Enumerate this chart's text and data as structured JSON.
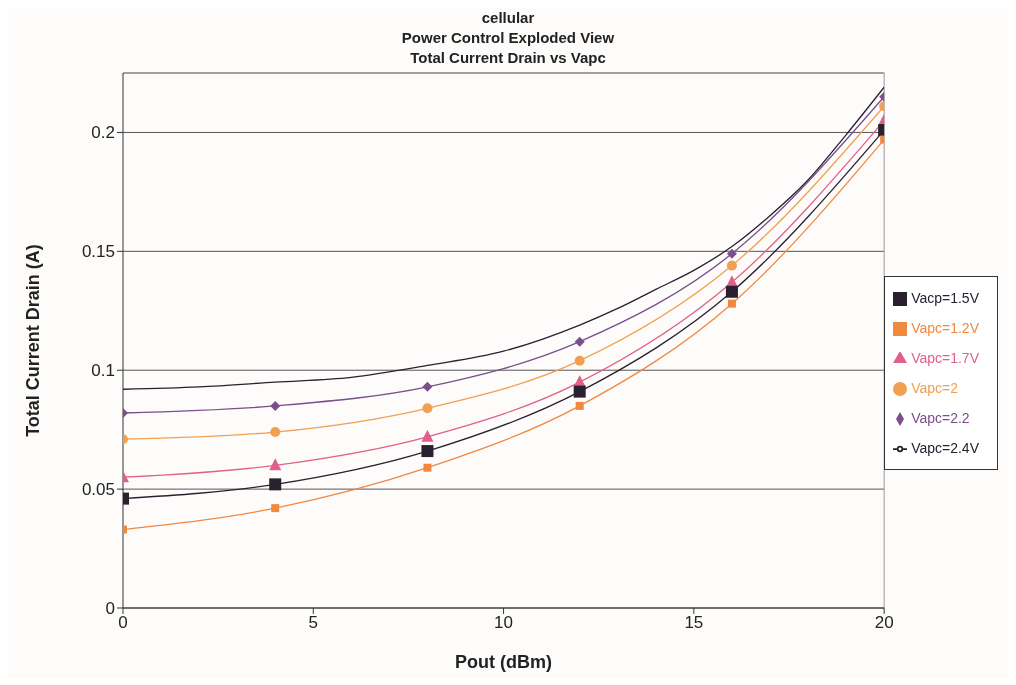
{
  "chart_data": {
    "type": "line",
    "title": "cellular\nPower Control Exploded View\nTotal Current Drain vs Vapc",
    "xlabel": "Pout (dBm)",
    "ylabel": "Total Current Drain (A)",
    "xlim": [
      0,
      20
    ],
    "xticks": [
      0,
      5,
      10,
      15,
      20
    ],
    "ylim": [
      0,
      0.225
    ],
    "yticks": [
      0,
      0.05,
      0.1,
      0.15,
      0.2
    ],
    "grid": "y",
    "legend": "right",
    "line_style": "solid",
    "series": [
      {
        "name": "Vapc=2.4V",
        "color": "#2a2030",
        "marker": "none",
        "x": [
          0,
          2,
          4,
          6,
          8,
          10,
          12,
          13,
          14,
          15,
          16,
          17,
          18,
          19,
          20
        ],
        "values": [
          0.092,
          0.093,
          0.095,
          0.097,
          0.102,
          0.108,
          0.119,
          0.126,
          0.134,
          0.142,
          0.152,
          0.165,
          0.18,
          0.199,
          0.219
        ]
      },
      {
        "name": "Vapc=2.2",
        "color": "#7a4f8a",
        "marker": "diamond",
        "x": [
          0,
          4,
          8,
          12,
          16,
          20
        ],
        "values": [
          0.082,
          0.085,
          0.093,
          0.112,
          0.149,
          0.215
        ]
      },
      {
        "name": "Vapc=2",
        "color": "#f0a050",
        "marker": "circle",
        "x": [
          0,
          4,
          8,
          12,
          16,
          20
        ],
        "values": [
          0.071,
          0.074,
          0.084,
          0.104,
          0.144,
          0.211
        ]
      },
      {
        "name": "Vapc=1.7V",
        "color": "#e0608a",
        "marker": "triangle",
        "x": [
          0,
          4,
          8,
          12,
          16,
          20
        ],
        "values": [
          0.055,
          0.06,
          0.072,
          0.095,
          0.137,
          0.205
        ]
      },
      {
        "name": "Vacp=1.5V",
        "color": "#2a2030",
        "marker": "square",
        "x": [
          0,
          4,
          8,
          12,
          16,
          20
        ],
        "values": [
          0.046,
          0.052,
          0.066,
          0.091,
          0.133,
          0.201
        ]
      },
      {
        "name": "Vapc=1.2V",
        "color": "#f08840",
        "marker": "square",
        "x": [
          0,
          4,
          8,
          12,
          16,
          20
        ],
        "values": [
          0.033,
          0.042,
          0.059,
          0.085,
          0.128,
          0.197
        ]
      }
    ]
  }
}
